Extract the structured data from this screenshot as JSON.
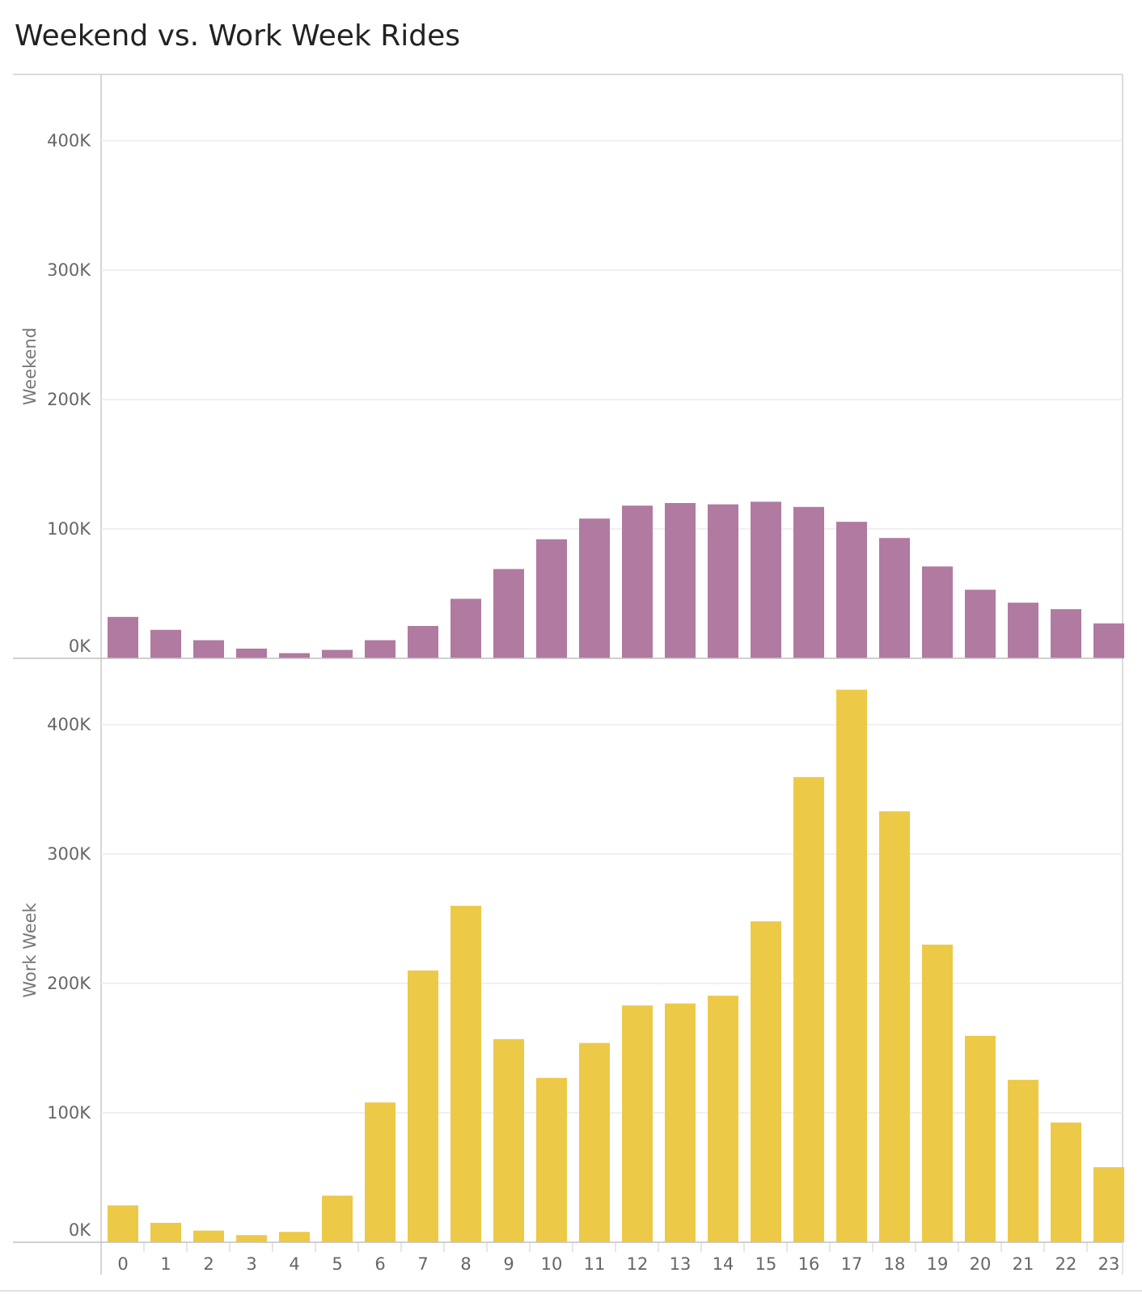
{
  "chart_data": {
    "type": "bar",
    "title": "Weekend vs. Work Week Rides",
    "categories": [
      "0",
      "1",
      "2",
      "3",
      "4",
      "5",
      "6",
      "7",
      "8",
      "9",
      "10",
      "11",
      "12",
      "13",
      "14",
      "15",
      "16",
      "17",
      "18",
      "19",
      "20",
      "21",
      "22",
      "23"
    ],
    "y_ticks": [
      "0K",
      "100K",
      "200K",
      "300K",
      "400K"
    ],
    "ylim": [
      0,
      440000
    ],
    "grid": true,
    "colors": {
      "Weekend": "#b07aa1",
      "Work Week": "#edc948"
    },
    "panels": [
      {
        "ylabel": "Weekend",
        "values": [
          32000,
          22000,
          14000,
          7500,
          4000,
          6500,
          14000,
          25000,
          46000,
          69000,
          92000,
          108000,
          118000,
          120000,
          119000,
          121000,
          117000,
          105500,
          93000,
          71000,
          53000,
          43000,
          38000,
          27000
        ]
      },
      {
        "ylabel": "Work Week",
        "values": [
          28500,
          15000,
          9000,
          5500,
          8000,
          36000,
          108000,
          210000,
          260000,
          157000,
          127000,
          154000,
          183000,
          184500,
          190500,
          248000,
          359500,
          427000,
          333000,
          230000,
          159500,
          125500,
          92500,
          58000
        ]
      }
    ]
  }
}
